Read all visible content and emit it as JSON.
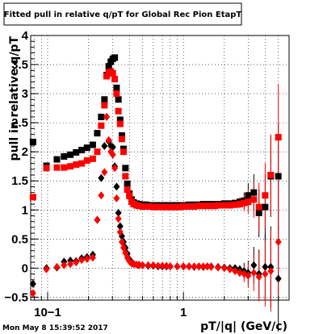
{
  "chart_data": {
    "type": "scatter",
    "title": "Fitted pull in relative q/pT for Global Rec Pion EtapT",
    "xlabel": "pT/|q| (GeV/c)",
    "ylabel": "pull in relative q/pT",
    "xscale": "log",
    "xlim": [
      0.075,
      6.0
    ],
    "ylim": [
      -0.55,
      4.0
    ],
    "grid": true,
    "x_tick_labels": [
      {
        "v": 0.1,
        "t": "10−1"
      },
      {
        "v": 1,
        "t": "1"
      }
    ],
    "y_tick_labels": [
      {
        "v": -0.5,
        "t": "−0.5"
      },
      {
        "v": 0,
        "t": "0"
      },
      {
        "v": 0.5,
        "t": "0.5"
      },
      {
        "v": 1,
        "t": "1"
      },
      {
        "v": 1.5,
        "t": "1.5"
      },
      {
        "v": 2,
        "t": "2"
      },
      {
        "v": 2.5,
        "t": "2.5"
      },
      {
        "v": 3,
        "t": "3"
      },
      {
        "v": 3.5,
        "t": "3.5"
      },
      {
        "v": 4,
        "t": "4"
      }
    ],
    "timestamp": "Mon May  8 15:39:52 2017",
    "series": [
      {
        "color": "#000000",
        "marker": "square",
        "points": [
          [
            0.078,
            2.17
          ],
          [
            0.098,
            1.76
          ],
          [
            0.117,
            1.87
          ],
          [
            0.132,
            1.92
          ],
          [
            0.147,
            1.95
          ],
          [
            0.162,
            1.99
          ],
          [
            0.178,
            2.03
          ],
          [
            0.195,
            2.07
          ],
          [
            0.215,
            2.12
          ],
          [
            0.232,
            2.32
          ],
          [
            0.248,
            2.6
          ],
          [
            0.262,
            2.9
          ],
          [
            0.272,
            3.32
          ],
          [
            0.282,
            3.47
          ],
          [
            0.292,
            3.55
          ],
          [
            0.302,
            3.6
          ],
          [
            0.312,
            3.62
          ],
          [
            0.322,
            3.1
          ],
          [
            0.332,
            2.9
          ],
          [
            0.342,
            2.55
          ],
          [
            0.352,
            2.28
          ],
          [
            0.362,
            2.05
          ],
          [
            0.374,
            1.72
          ],
          [
            0.386,
            1.45
          ],
          [
            0.4,
            1.28
          ],
          [
            0.415,
            1.18
          ],
          [
            0.43,
            1.13
          ],
          [
            0.45,
            1.11
          ],
          [
            0.47,
            1.1
          ],
          [
            0.5,
            1.09
          ],
          [
            0.53,
            1.09
          ],
          [
            0.56,
            1.08
          ],
          [
            0.6,
            1.08
          ],
          [
            0.65,
            1.08
          ],
          [
            0.7,
            1.08
          ],
          [
            0.75,
            1.08
          ],
          [
            0.8,
            1.08
          ],
          [
            0.85,
            1.08
          ],
          [
            0.9,
            1.08
          ],
          [
            0.95,
            1.08
          ],
          [
            1.0,
            1.08
          ],
          [
            1.1,
            1.09
          ],
          [
            1.2,
            1.09
          ],
          [
            1.3,
            1.09
          ],
          [
            1.4,
            1.1
          ],
          [
            1.5,
            1.1
          ],
          [
            1.6,
            1.1
          ],
          [
            1.7,
            1.1
          ],
          [
            1.8,
            1.1
          ],
          [
            2.0,
            1.11
          ],
          [
            2.2,
            1.11
          ],
          [
            2.4,
            1.12
          ],
          [
            2.6,
            1.14
          ],
          [
            2.8,
            1.16
          ],
          [
            3.0,
            1.25
          ],
          [
            3.3,
            1.3
          ],
          [
            3.6,
            0.95
          ],
          [
            4.0,
            1.05
          ],
          [
            4.4,
            1.58
          ],
          [
            5.0,
            1.58
          ]
        ]
      },
      {
        "color": "#ff0000",
        "marker": "square",
        "points": [
          [
            0.078,
            1.22
          ],
          [
            0.098,
            1.72
          ],
          [
            0.117,
            1.73
          ],
          [
            0.132,
            1.73
          ],
          [
            0.147,
            1.75
          ],
          [
            0.162,
            1.78
          ],
          [
            0.178,
            1.8
          ],
          [
            0.195,
            1.85
          ],
          [
            0.215,
            1.88
          ],
          [
            0.232,
            2.0
          ],
          [
            0.248,
            2.45
          ],
          [
            0.262,
            2.8
          ],
          [
            0.272,
            3.3
          ],
          [
            0.282,
            3.36
          ],
          [
            0.292,
            3.38
          ],
          [
            0.302,
            3.35
          ],
          [
            0.312,
            3.25
          ],
          [
            0.322,
            3.0
          ],
          [
            0.332,
            2.7
          ],
          [
            0.342,
            2.48
          ],
          [
            0.352,
            2.22
          ],
          [
            0.362,
            2.0
          ],
          [
            0.374,
            1.58
          ],
          [
            0.386,
            1.35
          ],
          [
            0.4,
            1.24
          ],
          [
            0.415,
            1.14
          ],
          [
            0.43,
            1.1
          ],
          [
            0.45,
            1.08
          ],
          [
            0.47,
            1.07
          ],
          [
            0.5,
            1.06
          ],
          [
            0.53,
            1.06
          ],
          [
            0.56,
            1.06
          ],
          [
            0.6,
            1.05
          ],
          [
            0.65,
            1.05
          ],
          [
            0.7,
            1.05
          ],
          [
            0.75,
            1.05
          ],
          [
            0.8,
            1.05
          ],
          [
            0.85,
            1.05
          ],
          [
            0.9,
            1.05
          ],
          [
            0.95,
            1.05
          ],
          [
            1.0,
            1.06
          ],
          [
            1.1,
            1.06
          ],
          [
            1.2,
            1.06
          ],
          [
            1.3,
            1.07
          ],
          [
            1.4,
            1.07
          ],
          [
            1.5,
            1.07
          ],
          [
            1.6,
            1.07
          ],
          [
            1.7,
            1.07
          ],
          [
            1.8,
            1.08
          ],
          [
            2.0,
            1.08
          ],
          [
            2.2,
            1.08
          ],
          [
            2.4,
            1.09
          ],
          [
            2.6,
            1.1
          ],
          [
            2.8,
            1.12
          ],
          [
            3.0,
            1.14
          ],
          [
            3.3,
            1.18
          ],
          [
            3.6,
            1.05
          ],
          [
            4.0,
            1.25
          ],
          [
            4.4,
            1.6
          ],
          [
            5.0,
            2.25
          ]
        ]
      },
      {
        "color": "#000000",
        "marker": "diamond",
        "points": [
          [
            0.078,
            -0.27
          ],
          [
            0.098,
            0.0
          ],
          [
            0.117,
            0.01
          ],
          [
            0.132,
            0.11
          ],
          [
            0.147,
            0.13
          ],
          [
            0.162,
            0.12
          ],
          [
            0.178,
            0.17
          ],
          [
            0.195,
            0.19
          ],
          [
            0.215,
            0.23
          ],
          [
            0.232,
            0.83
          ],
          [
            0.248,
            1.55
          ],
          [
            0.262,
            2.1
          ],
          [
            0.272,
            2.6
          ],
          [
            0.282,
            2.18
          ],
          [
            0.292,
            2.1
          ],
          [
            0.302,
            2.08
          ],
          [
            0.312,
            1.75
          ],
          [
            0.322,
            1.4
          ],
          [
            0.332,
            0.95
          ],
          [
            0.342,
            0.72
          ],
          [
            0.352,
            0.55
          ],
          [
            0.362,
            0.45
          ],
          [
            0.374,
            0.35
          ],
          [
            0.386,
            0.25
          ],
          [
            0.4,
            0.15
          ],
          [
            0.415,
            0.1
          ],
          [
            0.43,
            0.07
          ],
          [
            0.45,
            0.06
          ],
          [
            0.47,
            0.05
          ],
          [
            0.5,
            0.05
          ],
          [
            0.55,
            0.04
          ],
          [
            0.6,
            0.04
          ],
          [
            0.65,
            0.03
          ],
          [
            0.7,
            0.03
          ],
          [
            0.75,
            0.03
          ],
          [
            0.8,
            0.03
          ],
          [
            0.9,
            0.03
          ],
          [
            1.0,
            0.03
          ],
          [
            1.1,
            0.03
          ],
          [
            1.2,
            0.02
          ],
          [
            1.3,
            0.03
          ],
          [
            1.4,
            0.02
          ],
          [
            1.5,
            0.03
          ],
          [
            1.6,
            0.03
          ],
          [
            1.8,
            0.02
          ],
          [
            2.0,
            0.01
          ],
          [
            2.2,
            0.0
          ],
          [
            2.4,
            0.0
          ],
          [
            2.6,
            -0.02
          ],
          [
            2.8,
            -0.05
          ],
          [
            3.0,
            -0.08
          ],
          [
            3.3,
            0.05
          ],
          [
            3.6,
            -0.1
          ],
          [
            4.0,
            0.02
          ],
          [
            4.4,
            0.02
          ],
          [
            5.0,
            -0.18
          ]
        ]
      },
      {
        "color": "#ff0000",
        "marker": "diamond",
        "points": [
          [
            0.078,
            -0.43
          ],
          [
            0.098,
            -0.02
          ],
          [
            0.117,
            0.02
          ],
          [
            0.132,
            0.05
          ],
          [
            0.147,
            0.07
          ],
          [
            0.162,
            0.1
          ],
          [
            0.178,
            0.14
          ],
          [
            0.195,
            0.16
          ],
          [
            0.215,
            0.18
          ],
          [
            0.232,
            0.83
          ],
          [
            0.248,
            1.25
          ],
          [
            0.262,
            1.65
          ],
          [
            0.272,
            2.6
          ],
          [
            0.282,
            2.2
          ],
          [
            0.292,
            2.0
          ],
          [
            0.302,
            1.95
          ],
          [
            0.312,
            1.72
          ],
          [
            0.322,
            1.2
          ],
          [
            0.332,
            0.85
          ],
          [
            0.342,
            0.62
          ],
          [
            0.352,
            0.45
          ],
          [
            0.362,
            0.35
          ],
          [
            0.374,
            0.26
          ],
          [
            0.386,
            0.18
          ],
          [
            0.4,
            0.12
          ],
          [
            0.415,
            0.08
          ],
          [
            0.43,
            0.07
          ],
          [
            0.45,
            0.06
          ],
          [
            0.47,
            0.06
          ],
          [
            0.5,
            0.05
          ],
          [
            0.55,
            0.05
          ],
          [
            0.6,
            0.05
          ],
          [
            0.65,
            0.04
          ],
          [
            0.7,
            0.04
          ],
          [
            0.75,
            0.04
          ],
          [
            0.8,
            0.03
          ],
          [
            0.9,
            0.03
          ],
          [
            1.0,
            0.03
          ],
          [
            1.1,
            0.03
          ],
          [
            1.2,
            0.03
          ],
          [
            1.3,
            0.03
          ],
          [
            1.4,
            0.03
          ],
          [
            1.5,
            0.03
          ],
          [
            1.6,
            0.02
          ],
          [
            1.8,
            0.01
          ],
          [
            2.0,
            0.0
          ],
          [
            2.2,
            -0.02
          ],
          [
            2.4,
            -0.05
          ],
          [
            2.6,
            -0.08
          ],
          [
            2.8,
            -0.1
          ],
          [
            3.0,
            -0.13
          ],
          [
            3.3,
            -0.08
          ],
          [
            3.6,
            -0.15
          ],
          [
            4.0,
            -0.1
          ],
          [
            4.4,
            -0.05
          ],
          [
            5.0,
            0.45
          ]
        ]
      }
    ]
  }
}
